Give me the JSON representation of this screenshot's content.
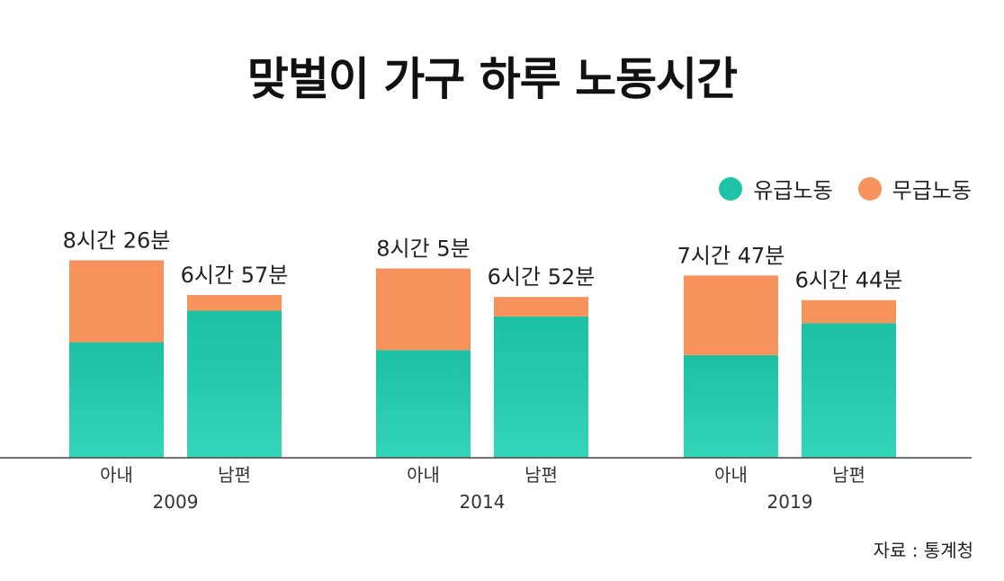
{
  "title": "맞벌이 가구 하루 노동시간",
  "legend": [
    {
      "label": "유급노동",
      "color": "#1fc3a5"
    },
    {
      "label": "무급노동",
      "color": "#f7925c"
    }
  ],
  "source": "자료 : 통계청",
  "chart_data": {
    "type": "bar",
    "stacked": true,
    "title": "맞벌이 가구 하루 노동시간",
    "unit": "minutes",
    "ylim": [
      0,
      530
    ],
    "groups": [
      {
        "year": "2009",
        "bars": [
          {
            "category": "아내",
            "total_label": "8시간 26분",
            "total_minutes": 506,
            "paid_minutes": 296,
            "unpaid_minutes": 210
          },
          {
            "category": "남편",
            "total_label": "6시간 57분",
            "total_minutes": 417,
            "paid_minutes": 377,
            "unpaid_minutes": 40
          }
        ]
      },
      {
        "year": "2014",
        "bars": [
          {
            "category": "아내",
            "total_label": "8시간 5분",
            "total_minutes": 485,
            "paid_minutes": 276,
            "unpaid_minutes": 209
          },
          {
            "category": "남편",
            "total_label": "6시간 52분",
            "total_minutes": 412,
            "paid_minutes": 362,
            "unpaid_minutes": 50
          }
        ]
      },
      {
        "year": "2019",
        "bars": [
          {
            "category": "아내",
            "total_label": "7시간 47분",
            "total_minutes": 467,
            "paid_minutes": 263,
            "unpaid_minutes": 204
          },
          {
            "category": "남편",
            "total_label": "6시간 44분",
            "total_minutes": 404,
            "paid_minutes": 345,
            "unpaid_minutes": 59
          }
        ]
      }
    ],
    "series": [
      {
        "name": "유급노동",
        "color": "#1fc3a5"
      },
      {
        "name": "무급노동",
        "color": "#f7925c"
      }
    ]
  }
}
